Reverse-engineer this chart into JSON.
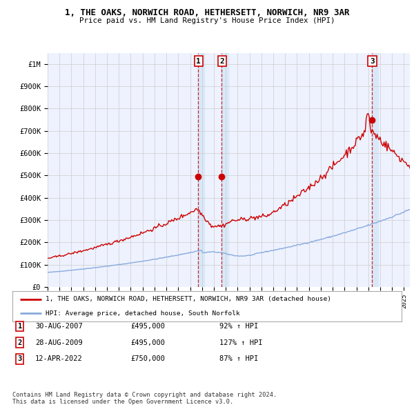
{
  "title": "1, THE OAKS, NORWICH ROAD, HETHERSETT, NORWICH, NR9 3AR",
  "subtitle": "Price paid vs. HM Land Registry's House Price Index (HPI)",
  "ylim": [
    0,
    1050000
  ],
  "yticks": [
    0,
    100000,
    200000,
    300000,
    400000,
    500000,
    600000,
    700000,
    800000,
    900000,
    1000000
  ],
  "ytick_labels": [
    "£0",
    "£100K",
    "£200K",
    "£300K",
    "£400K",
    "£500K",
    "£600K",
    "£700K",
    "£800K",
    "£900K",
    "£1M"
  ],
  "xlim_start": 1995.0,
  "xlim_end": 2025.5,
  "sale_dates": [
    2007.663,
    2009.66,
    2022.278
  ],
  "sale_prices": [
    495000,
    495000,
    750000
  ],
  "sale_labels": [
    "1",
    "2",
    "3"
  ],
  "legend_entries": [
    {
      "label": "1, THE OAKS, NORWICH ROAD, HETHERSETT, NORWICH, NR9 3AR (detached house)",
      "color": "#cc0000"
    },
    {
      "label": "HPI: Average price, detached house, South Norfolk",
      "color": "#88aadd"
    }
  ],
  "table_rows": [
    {
      "num": "1",
      "date": "30-AUG-2007",
      "price": "£495,000",
      "hpi": "92% ↑ HPI"
    },
    {
      "num": "2",
      "date": "28-AUG-2009",
      "price": "£495,000",
      "hpi": "127% ↑ HPI"
    },
    {
      "num": "3",
      "date": "12-APR-2022",
      "price": "£750,000",
      "hpi": "87% ↑ HPI"
    }
  ],
  "footer": "Contains HM Land Registry data © Crown copyright and database right 2024.\nThis data is licensed under the Open Government Licence v3.0.",
  "bg_color": "#ffffff",
  "plot_bg_color": "#eef2ff",
  "grid_color": "#cccccc",
  "shade_color": "#d8e8f8",
  "red_line_color": "#cc0000",
  "blue_line_color": "#88aadd"
}
